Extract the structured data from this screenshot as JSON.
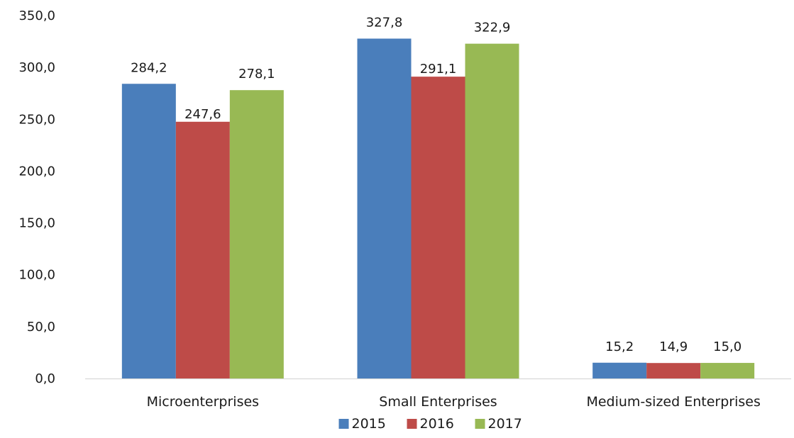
{
  "chart_data": {
    "type": "bar",
    "categories": [
      "Microenterprises",
      "Small Enterprises",
      "Medium-sized Enterprises"
    ],
    "series": [
      {
        "name": "2015",
        "color": "#4a7ebb",
        "values": [
          284.2,
          327.8,
          15.2
        ],
        "labels": [
          "284,2",
          "327,8",
          "15,2"
        ]
      },
      {
        "name": "2016",
        "color": "#be4b48",
        "values": [
          247.6,
          291.1,
          14.9
        ],
        "labels": [
          "247,6",
          "291,1",
          "14,9"
        ]
      },
      {
        "name": "2017",
        "color": "#98b954",
        "values": [
          278.1,
          322.9,
          15.0
        ],
        "labels": [
          "278,1",
          "322,9",
          "15,0"
        ]
      }
    ],
    "ylim": [
      0,
      350
    ],
    "yticks": [
      0,
      50,
      100,
      150,
      200,
      250,
      300,
      350
    ],
    "ytick_labels": [
      "0,0",
      "50,0",
      "100,0",
      "150,0",
      "200,0",
      "250,0",
      "300,0",
      "350,0"
    ],
    "grid": false,
    "legend_position": "bottom-center",
    "title": "",
    "xlabel": "",
    "ylabel": ""
  }
}
